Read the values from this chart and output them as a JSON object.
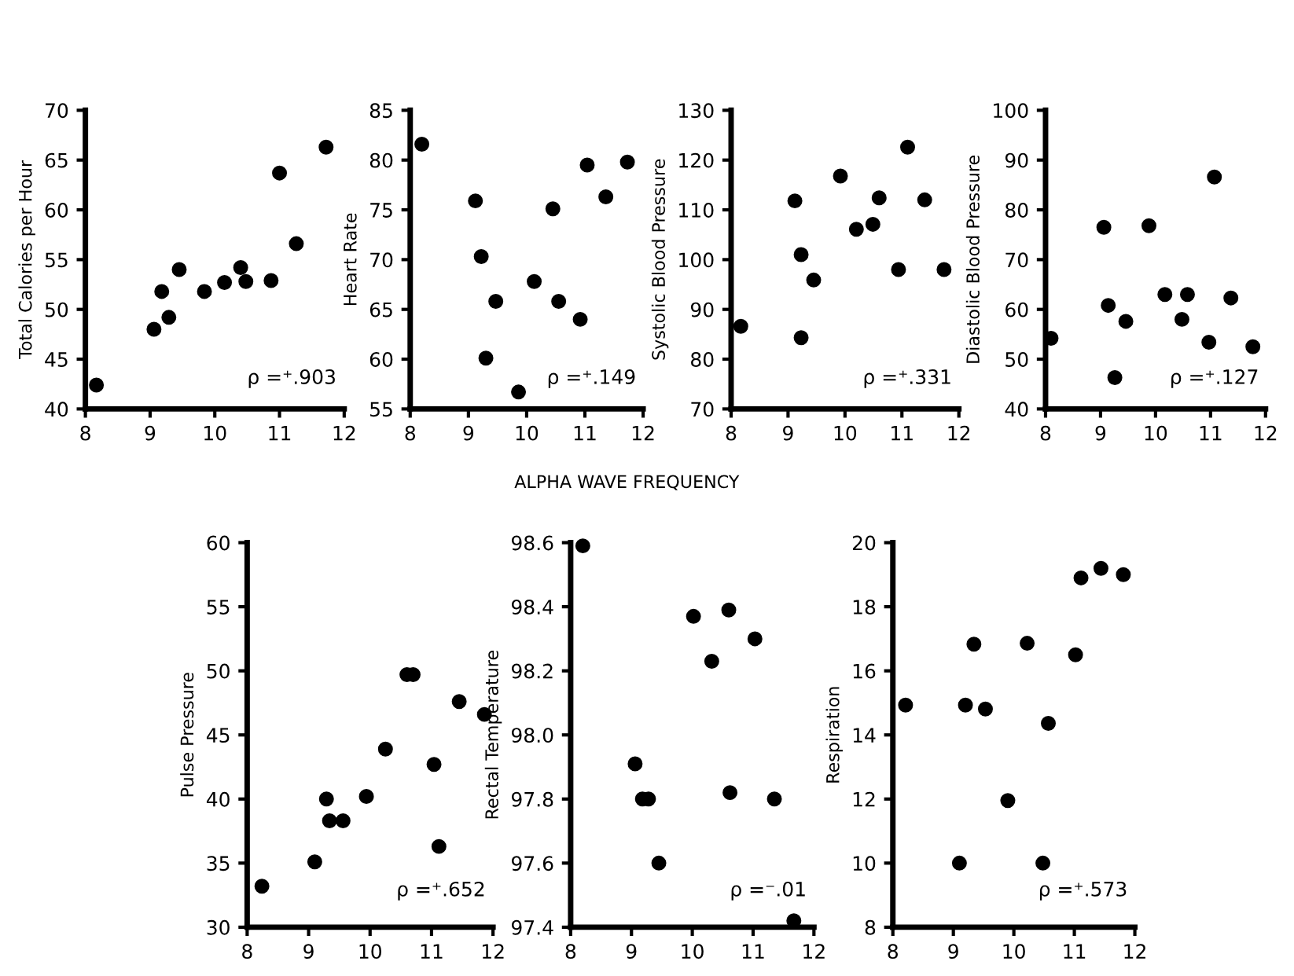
{
  "chart_data": [
    {
      "type": "scatter",
      "ylabel": "Total Calories per Hour",
      "xlim": [
        8,
        12
      ],
      "ylim": [
        40,
        70
      ],
      "xticks": [
        8,
        9,
        10,
        11,
        12
      ],
      "yticks": [
        40,
        45,
        50,
        55,
        60,
        65,
        70
      ],
      "marker": "circle",
      "grid": false,
      "annotations": [
        "ρ =⁺.903"
      ],
      "series": [
        {
          "color": "#000000",
          "x": [
            8.17,
            9.06,
            9.18,
            9.29,
            9.45,
            9.84,
            10.15,
            10.4,
            10.48,
            10.87,
            11.0,
            11.26,
            11.72
          ],
          "values": [
            42.4,
            48.0,
            51.8,
            49.2,
            54.0,
            51.8,
            52.7,
            54.2,
            52.8,
            52.9,
            63.7,
            56.6,
            66.3
          ]
        }
      ]
    },
    {
      "type": "scatter",
      "xlabel": "ALPHA WAVE FREQUENCY",
      "ylabel": "Heart Rate",
      "xlim": [
        8,
        12
      ],
      "ylim": [
        55,
        85
      ],
      "xticks": [
        8,
        9,
        10,
        11,
        12
      ],
      "yticks": [
        55,
        60,
        65,
        70,
        75,
        80,
        85
      ],
      "marker": "circle",
      "grid": false,
      "annotations": [
        "ρ =⁺.149"
      ],
      "series": [
        {
          "color": "#000000",
          "x": [
            8.2,
            9.12,
            9.22,
            9.3,
            9.47,
            9.86,
            10.13,
            10.45,
            10.55,
            10.92,
            11.04,
            11.36,
            11.73
          ],
          "values": [
            81.6,
            75.9,
            70.3,
            60.1,
            65.8,
            56.7,
            67.8,
            75.1,
            65.8,
            64.0,
            79.5,
            76.3,
            79.8
          ]
        }
      ]
    },
    {
      "type": "scatter",
      "ylabel": "Systolic Blood Pressure",
      "xlim": [
        8,
        12
      ],
      "ylim": [
        70,
        130
      ],
      "xticks": [
        8,
        9,
        10,
        11,
        12
      ],
      "yticks": [
        70,
        80,
        90,
        100,
        110,
        120,
        130
      ],
      "marker": "circle",
      "grid": false,
      "annotations": [
        "ρ =⁺.331"
      ],
      "series": [
        {
          "color": "#000000",
          "x": [
            8.17,
            9.12,
            9.23,
            9.23,
            9.45,
            9.92,
            10.2,
            10.49,
            10.6,
            10.94,
            11.1,
            11.4,
            11.74
          ],
          "values": [
            86.6,
            111.8,
            84.3,
            101.0,
            95.9,
            116.8,
            106.1,
            107.1,
            112.4,
            98.0,
            122.6,
            112.0,
            98.0
          ]
        }
      ]
    },
    {
      "type": "scatter",
      "ylabel": "Diastolic Blood Pressure",
      "xlim": [
        8,
        12
      ],
      "ylim": [
        40,
        100
      ],
      "xticks": [
        8,
        9,
        10,
        11,
        12
      ],
      "yticks": [
        40,
        50,
        60,
        70,
        80,
        90,
        100
      ],
      "marker": "circle",
      "grid": false,
      "annotations": [
        "ρ =⁺.127"
      ],
      "series": [
        {
          "color": "#000000",
          "x": [
            8.1,
            9.06,
            9.14,
            9.26,
            9.46,
            9.88,
            10.17,
            10.48,
            10.58,
            10.97,
            11.07,
            11.37,
            11.77
          ],
          "values": [
            54.2,
            76.5,
            60.8,
            46.3,
            57.6,
            76.8,
            63.0,
            58.0,
            63.0,
            53.4,
            86.6,
            62.3,
            52.5
          ]
        }
      ]
    },
    {
      "type": "scatter",
      "ylabel": "Pulse Pressure",
      "xlim": [
        8,
        12
      ],
      "ylim": [
        30,
        60
      ],
      "xticks": [
        8,
        9,
        10,
        11,
        12
      ],
      "yticks": [
        30,
        35,
        40,
        45,
        50,
        55,
        60
      ],
      "marker": "circle",
      "grid": false,
      "annotations": [
        "ρ =⁺.652"
      ],
      "series": [
        {
          "color": "#000000",
          "x": [
            8.24,
            9.1,
            9.29,
            9.34,
            9.56,
            9.94,
            10.25,
            10.6,
            10.7,
            11.04,
            11.12,
            11.45,
            11.86
          ],
          "values": [
            33.2,
            35.1,
            40.0,
            38.3,
            38.3,
            40.2,
            43.9,
            49.7,
            49.7,
            42.7,
            36.3,
            47.6,
            46.6
          ]
        }
      ]
    },
    {
      "type": "scatter",
      "ylabel": "Rectal Temperature",
      "xlim": [
        8,
        12
      ],
      "ylim": [
        97.4,
        98.6
      ],
      "xticks": [
        8,
        9,
        10,
        11,
        12
      ],
      "yticks": [
        {
          "value": 97.4,
          "label": "97.4"
        },
        {
          "value": 97.6,
          "label": "97.6"
        },
        {
          "value": 97.8,
          "label": "97.8"
        },
        {
          "value": 98.0,
          "label": "98.0"
        },
        {
          "value": 98.2,
          "label": "98.2"
        },
        {
          "value": 98.4,
          "label": "98.4"
        },
        {
          "value": 98.6,
          "label": "98.6"
        }
      ],
      "marker": "circle",
      "grid": false,
      "annotations": [
        "ρ =⁻.01"
      ],
      "series": [
        {
          "color": "#000000",
          "x": [
            8.2,
            9.06,
            9.18,
            9.28,
            9.45,
            10.02,
            10.32,
            10.6,
            10.62,
            11.03,
            11.35,
            11.67
          ],
          "values": [
            98.59,
            97.91,
            97.8,
            97.8,
            97.6,
            98.37,
            98.23,
            98.39,
            97.82,
            98.3,
            97.8,
            97.42
          ]
        }
      ]
    },
    {
      "type": "scatter",
      "ylabel": "Respiration",
      "xlim": [
        8,
        12
      ],
      "ylim": [
        8,
        20
      ],
      "xticks": [
        8,
        9,
        10,
        11,
        12
      ],
      "yticks": [
        8,
        10,
        12,
        14,
        16,
        18,
        20
      ],
      "marker": "circle",
      "grid": false,
      "annotations": [
        "ρ =⁺.573"
      ],
      "series": [
        {
          "color": "#000000",
          "x": [
            8.21,
            9.1,
            9.2,
            9.34,
            9.53,
            9.9,
            10.22,
            10.48,
            10.57,
            11.02,
            11.11,
            11.44,
            11.81
          ],
          "values": [
            14.93,
            10.0,
            14.93,
            16.83,
            14.81,
            11.95,
            16.86,
            10.0,
            14.36,
            16.5,
            18.9,
            19.2,
            19.0
          ]
        }
      ]
    }
  ]
}
